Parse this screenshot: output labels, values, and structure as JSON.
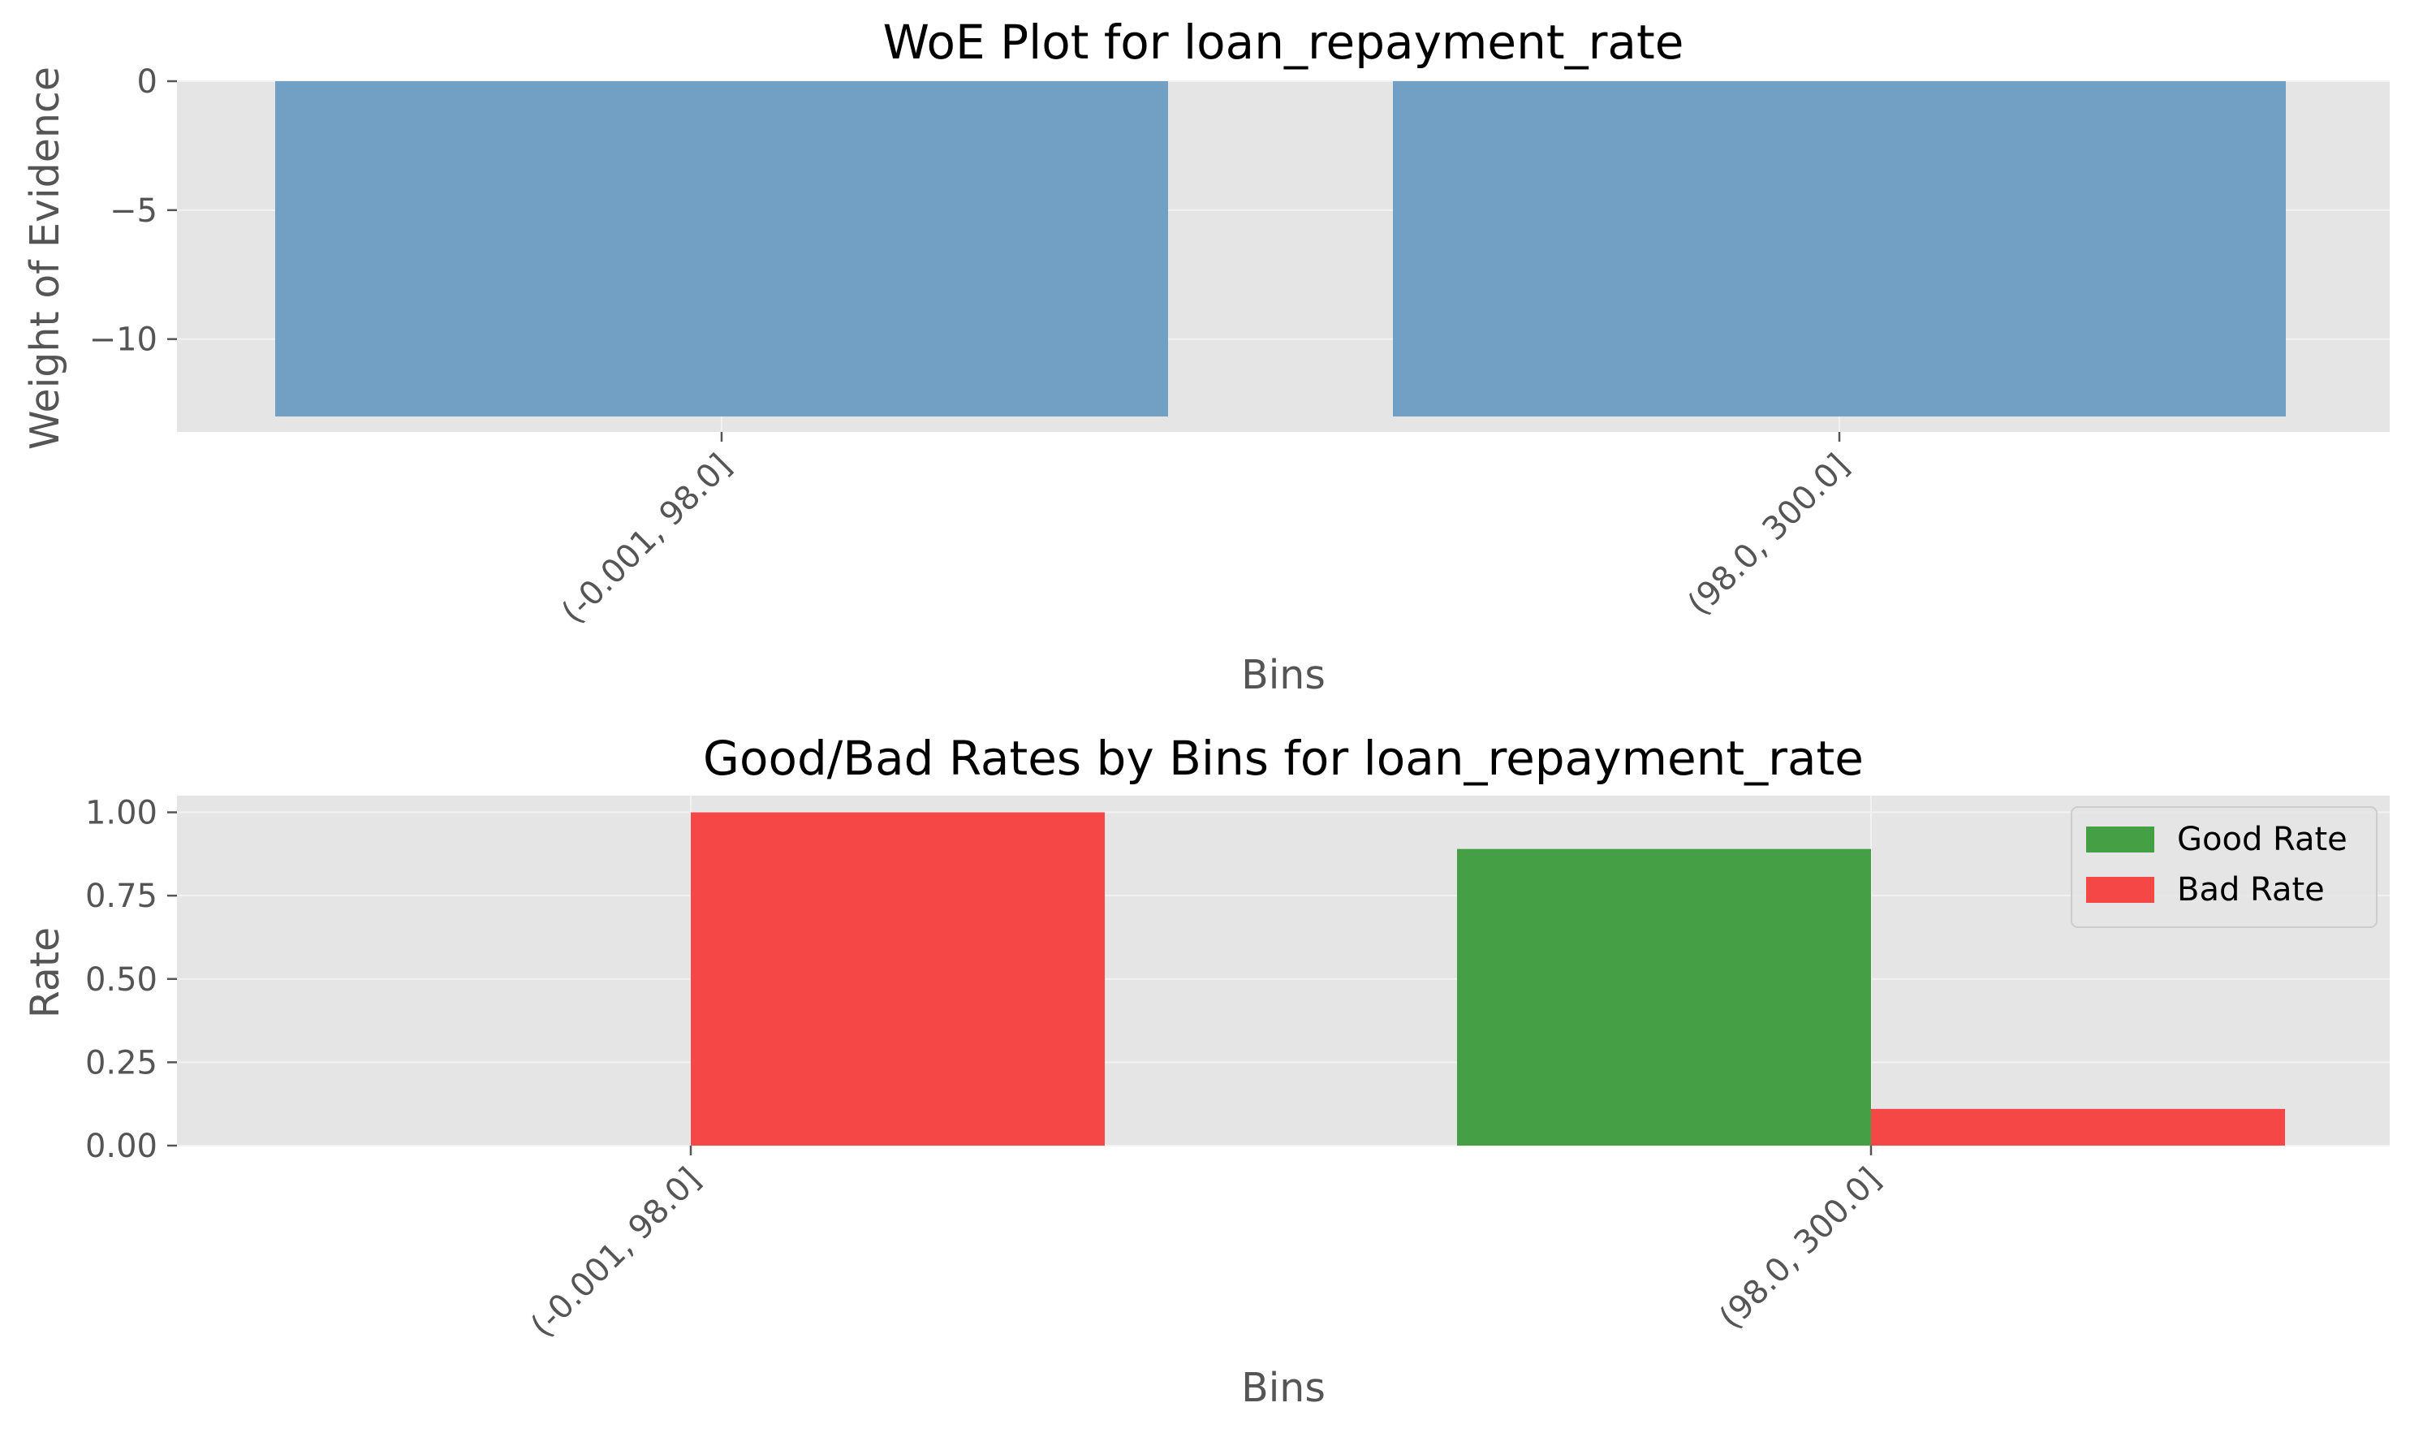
{
  "chart_data": [
    {
      "type": "bar",
      "title": "WoE Plot for loan_repayment_rate",
      "xlabel": "Bins",
      "ylabel": "Weight of Evidence",
      "categories": [
        "(-0.001, 98.0]",
        "(98.0, 300.0]"
      ],
      "values": [
        -13.0,
        -13.0
      ],
      "ylim": [
        -13.6,
        0.0
      ],
      "yticks": [
        0,
        -5,
        -10
      ],
      "ytick_labels": [
        "0",
        "−5",
        "−10"
      ],
      "grid": true,
      "colors": {
        "bar": "#729fc4",
        "background": "#e5e5e5",
        "grid": "#f2f2f2"
      }
    },
    {
      "type": "bar",
      "title": "Good/Bad Rates by Bins for loan_repayment_rate",
      "xlabel": "Bins",
      "ylabel": "Rate",
      "categories": [
        "(-0.001, 98.0]",
        "(98.0, 300.0]"
      ],
      "series": [
        {
          "name": "Good Rate",
          "values": [
            0.0,
            0.89
          ],
          "color": "#449f45"
        },
        {
          "name": "Bad Rate",
          "values": [
            1.0,
            0.11
          ],
          "color": "#f64747"
        }
      ],
      "ylim": [
        0.0,
        1.05
      ],
      "yticks": [
        0.0,
        0.25,
        0.5,
        0.75,
        1.0
      ],
      "ytick_labels": [
        "0.00",
        "0.25",
        "0.50",
        "0.75",
        "1.00"
      ],
      "legend": "top-right",
      "grid": true,
      "colors": {
        "background": "#e5e5e5",
        "grid": "#f2f2f2"
      }
    }
  ]
}
